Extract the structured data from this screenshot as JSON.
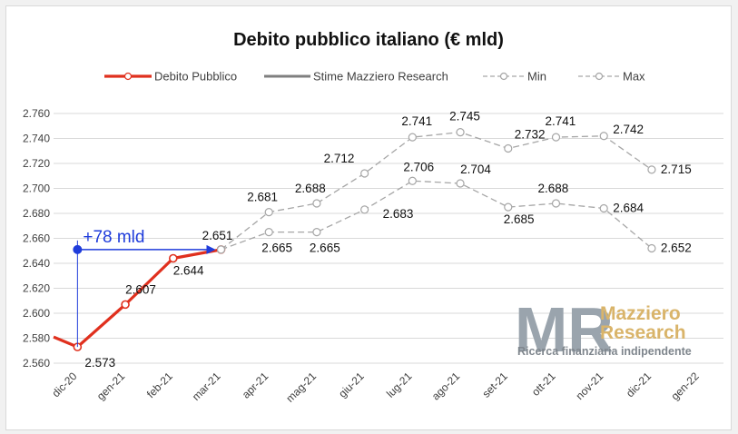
{
  "colors": {
    "debito": "#e0301e",
    "stime": "#7f7f7f",
    "minmax": "#a6a6a6",
    "grid": "#d9d9d9",
    "annotation": "#1f3cdb",
    "logo_letters": "#9aa4ad",
    "logo_gold": "#d9b46a"
  },
  "chart_data": {
    "type": "line",
    "title": "Debito pubblico italiano (€ mld)",
    "xlabel": "",
    "ylabel": "",
    "ylim": [
      2560,
      2760
    ],
    "y_ticks": [
      2560,
      2580,
      2600,
      2620,
      2640,
      2660,
      2680,
      2700,
      2720,
      2740,
      2760
    ],
    "y_tick_labels": [
      "2.560",
      "2.580",
      "2.600",
      "2.620",
      "2.640",
      "2.660",
      "2.680",
      "2.700",
      "2.720",
      "2.740",
      "2.760"
    ],
    "categories": [
      "dic-20",
      "gen-21",
      "feb-21",
      "mar-21",
      "apr-21",
      "mag-21",
      "giu-21",
      "lug-21",
      "ago-21",
      "set-21",
      "ott-21",
      "nov-21",
      "dic-21",
      "gen-22"
    ],
    "grid": true,
    "legend_position": "top",
    "series": [
      {
        "name": "Debito Pubblico",
        "style": "solid-thick",
        "values": [
          2573,
          2607,
          2644,
          2651,
          null,
          null,
          null,
          null,
          null,
          null,
          null,
          null,
          null,
          null
        ],
        "labels": [
          "2.573",
          "2.607",
          "2.644",
          "2.651",
          null,
          null,
          null,
          null,
          null,
          null,
          null,
          null,
          null,
          null
        ]
      },
      {
        "name": "Stime Mazziero Research",
        "style": "solid-gray",
        "values": [
          null,
          null,
          null,
          null,
          null,
          null,
          null,
          null,
          null,
          null,
          null,
          null,
          null,
          null
        ],
        "labels": []
      },
      {
        "name": "Min",
        "style": "dashed",
        "values": [
          null,
          null,
          null,
          2651,
          2665,
          2665,
          2683,
          2706,
          2704,
          2685,
          2688,
          2684,
          2652,
          null
        ],
        "labels": [
          null,
          null,
          null,
          null,
          "2.665",
          "2.665",
          "2.683",
          "2.706",
          "2.704",
          "2.685",
          "2.688",
          "2.684",
          "2.652",
          null
        ]
      },
      {
        "name": "Max",
        "style": "dashed",
        "values": [
          null,
          null,
          null,
          2651,
          2681,
          2688,
          2712,
          2741,
          2745,
          2732,
          2741,
          2742,
          2715,
          null
        ],
        "labels": [
          null,
          null,
          null,
          null,
          "2.681",
          "2.688",
          "2.712",
          "2.741",
          "2.745",
          "2.732",
          "2.741",
          "2.742",
          "2.715",
          null
        ]
      }
    ],
    "annotation": {
      "text": "+78 mld",
      "from_value": 2573,
      "to_value": 2651
    }
  },
  "logo": {
    "letters": "MR",
    "word1": "Mazziero",
    "word2": "Research",
    "tagline": "Ricerca finanziaria indipendente"
  }
}
